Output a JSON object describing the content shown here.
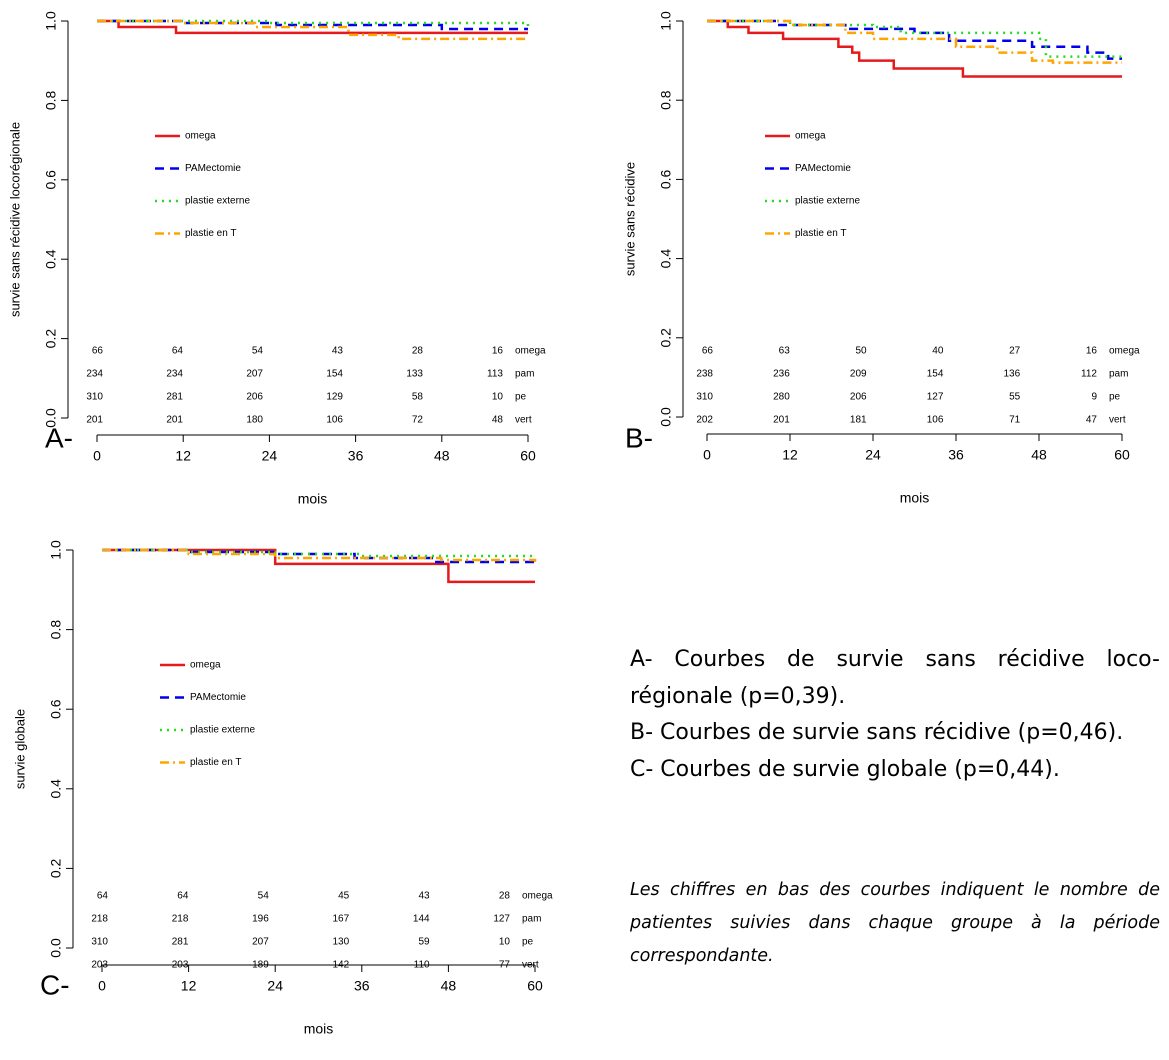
{
  "chart_data": [
    {
      "type": "line",
      "step": true,
      "panel_label": "A-",
      "ylabel": "survie sans récidive locorégionale",
      "xlabel": "mois",
      "xlim": [
        0,
        60
      ],
      "xticks": [
        0,
        12,
        24,
        36,
        48,
        60
      ],
      "ylim": [
        0,
        1
      ],
      "yticks": [
        {
          "value": 0,
          "label": "0.0"
        },
        {
          "value": 0.2,
          "label": "0.2"
        },
        {
          "value": 0.4,
          "label": "0.4"
        },
        {
          "value": 0.6,
          "label": "0.6"
        },
        {
          "value": 0.8,
          "label": "0.8"
        },
        {
          "value": 1,
          "label": "1.0"
        }
      ],
      "series": [
        {
          "name": "omega",
          "color": "#e41a1c",
          "x": [
            0,
            3,
            11,
            60
          ],
          "values": [
            1,
            0.985,
            0.97,
            0.97
          ]
        },
        {
          "name": "PAMectomie",
          "color": "#0000ee",
          "x": [
            0,
            12,
            25,
            48,
            60
          ],
          "values": [
            1,
            0.995,
            0.99,
            0.98,
            0.98
          ]
        },
        {
          "name": "plastie externe",
          "color": "#22dd22",
          "x": [
            0,
            24,
            60
          ],
          "values": [
            1,
            0.995,
            0.98
          ]
        },
        {
          "name": "plastie en T",
          "color": "#ffa500",
          "x": [
            0,
            12,
            22,
            35,
            42,
            60
          ],
          "values": [
            1,
            0.995,
            0.985,
            0.965,
            0.955,
            0.955
          ]
        }
      ],
      "risk_table": [
        {
          "name": "omega",
          "counts": [
            66,
            64,
            54,
            43,
            28,
            16
          ]
        },
        {
          "name": "pam",
          "counts": [
            234,
            234,
            207,
            154,
            133,
            113
          ]
        },
        {
          "name": "pe",
          "counts": [
            310,
            281,
            206,
            129,
            58,
            10
          ]
        },
        {
          "name": "vert",
          "counts": [
            201,
            201,
            180,
            106,
            72,
            48
          ]
        }
      ]
    },
    {
      "type": "line",
      "step": true,
      "panel_label": "B-",
      "ylabel": "survie sans récidive",
      "xlabel": "mois",
      "xlim": [
        0,
        60
      ],
      "xticks": [
        0,
        12,
        24,
        36,
        48,
        60
      ],
      "ylim": [
        0,
        1
      ],
      "yticks": [
        {
          "value": 0,
          "label": "0.0"
        },
        {
          "value": 0.2,
          "label": "0.2"
        },
        {
          "value": 0.4,
          "label": "0.4"
        },
        {
          "value": 0.6,
          "label": "0.6"
        },
        {
          "value": 0.8,
          "label": "0.8"
        },
        {
          "value": 1,
          "label": "1.0"
        }
      ],
      "series": [
        {
          "name": "omega",
          "color": "#e41a1c",
          "x": [
            0,
            3,
            6,
            11,
            19,
            21,
            22,
            27,
            37,
            60
          ],
          "values": [
            1,
            0.985,
            0.97,
            0.955,
            0.935,
            0.92,
            0.9,
            0.88,
            0.86,
            0.86
          ]
        },
        {
          "name": "PAMectomie",
          "color": "#0000ee",
          "x": [
            0,
            10,
            20,
            30,
            35,
            47,
            55,
            58,
            60
          ],
          "values": [
            1,
            0.99,
            0.98,
            0.97,
            0.95,
            0.935,
            0.92,
            0.905,
            0.905
          ]
        },
        {
          "name": "plastie externe",
          "color": "#22dd22",
          "x": [
            0,
            12,
            24,
            28,
            48,
            49,
            60
          ],
          "values": [
            1,
            0.99,
            0.985,
            0.97,
            0.955,
            0.91,
            0.91
          ]
        },
        {
          "name": "plastie en T",
          "color": "#ffa500",
          "x": [
            0,
            12,
            20,
            24,
            36,
            42,
            47,
            50,
            60
          ],
          "values": [
            1,
            0.99,
            0.97,
            0.955,
            0.935,
            0.92,
            0.9,
            0.895,
            0.895
          ]
        }
      ],
      "risk_table": [
        {
          "name": "omega",
          "counts": [
            66,
            63,
            50,
            40,
            27,
            16
          ]
        },
        {
          "name": "pam",
          "counts": [
            238,
            236,
            209,
            154,
            136,
            112
          ]
        },
        {
          "name": "pe",
          "counts": [
            310,
            280,
            206,
            127,
            55,
            9
          ]
        },
        {
          "name": "vert",
          "counts": [
            202,
            201,
            181,
            106,
            71,
            47
          ]
        }
      ]
    },
    {
      "type": "line",
      "step": true,
      "panel_label": "C-",
      "ylabel": "survie globale",
      "xlabel": "mois",
      "xlim": [
        0,
        60
      ],
      "xticks": [
        0,
        12,
        24,
        36,
        48,
        60
      ],
      "ylim": [
        0,
        1
      ],
      "yticks": [
        {
          "value": 0,
          "label": "0.0"
        },
        {
          "value": 0.2,
          "label": "0.2"
        },
        {
          "value": 0.4,
          "label": "0.4"
        },
        {
          "value": 0.6,
          "label": "0.6"
        },
        {
          "value": 0.8,
          "label": "0.8"
        },
        {
          "value": 1,
          "label": "1.0"
        }
      ],
      "series": [
        {
          "name": "omega",
          "color": "#e41a1c",
          "x": [
            0,
            24,
            48,
            60
          ],
          "values": [
            1,
            0.965,
            0.92,
            0.92
          ]
        },
        {
          "name": "PAMectomie",
          "color": "#0000ee",
          "x": [
            0,
            12,
            24,
            35,
            46,
            60
          ],
          "values": [
            1,
            0.995,
            0.99,
            0.98,
            0.97,
            0.965
          ]
        },
        {
          "name": "plastie externe",
          "color": "#22dd22",
          "x": [
            0,
            12,
            24,
            36,
            60
          ],
          "values": [
            1,
            0.995,
            0.99,
            0.985,
            0.985
          ]
        },
        {
          "name": "plastie en T",
          "color": "#ffa500",
          "x": [
            0,
            12,
            24,
            36,
            47,
            60
          ],
          "values": [
            1,
            0.99,
            0.98,
            0.98,
            0.975,
            0.97
          ]
        }
      ],
      "risk_table": [
        {
          "name": "omega",
          "counts": [
            64,
            64,
            54,
            45,
            43,
            28
          ]
        },
        {
          "name": "pam",
          "counts": [
            218,
            218,
            196,
            167,
            144,
            127
          ]
        },
        {
          "name": "pe",
          "counts": [
            310,
            281,
            207,
            130,
            59,
            10
          ]
        },
        {
          "name": "vert",
          "counts": [
            203,
            203,
            189,
            142,
            110,
            77
          ]
        }
      ]
    }
  ],
  "caption": [
    "A- Courbes de survie sans récidive loco-régionale (p=0,39).",
    "B- Courbes de survie sans récidive (p=0,46).",
    "C- Courbes de survie globale (p=0,44)."
  ],
  "note": "Les chiffres en bas des courbes indiquent  le nombre de patientes suivies dans chaque groupe à la période correspondante."
}
